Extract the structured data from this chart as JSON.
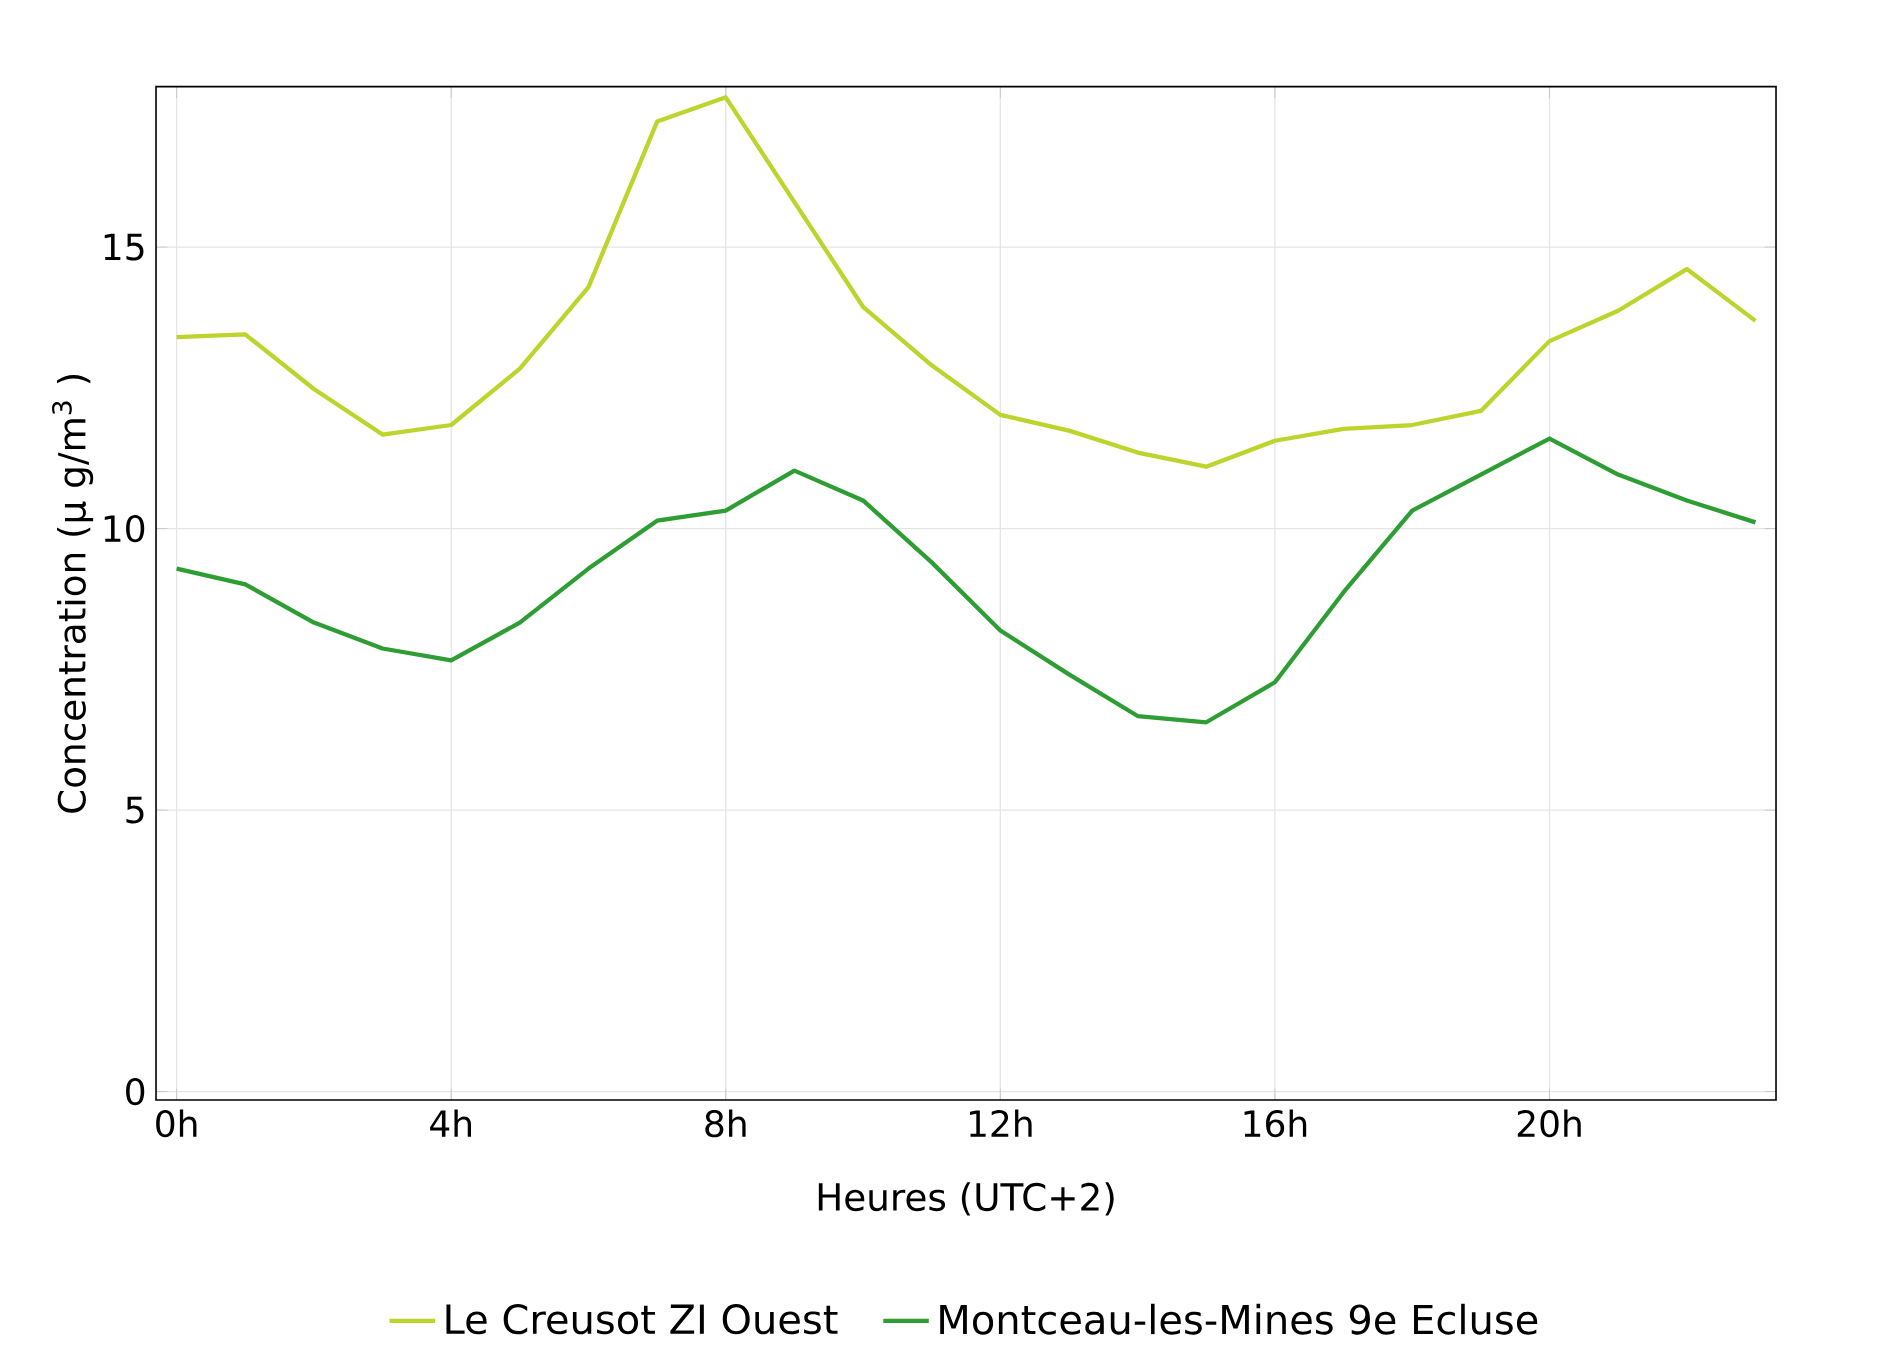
{
  "chart_data": {
    "type": "line",
    "xlabel": "Heures (UTC+2)",
    "ylabel": "Concentration (µ g/m$^{3}$ )",
    "x": [
      0,
      1,
      2,
      3,
      4,
      5,
      6,
      7,
      8,
      9,
      10,
      11,
      12,
      13,
      14,
      15,
      16,
      17,
      18,
      19,
      20,
      21,
      22,
      23
    ],
    "series": [
      {
        "name": "Le Creusot ZI Ouest",
        "color": "#bcd42c",
        "values": [
          13.4,
          13.45,
          12.48,
          11.67,
          11.84,
          12.84,
          14.29,
          17.23,
          17.66,
          15.8,
          13.94,
          12.9,
          12.02,
          11.74,
          11.35,
          11.1,
          11.56,
          11.77,
          11.84,
          12.09,
          13.33,
          13.87,
          14.61,
          13.69
        ]
      },
      {
        "name": "Montceau-les-Mines 9e Ecluse",
        "color": "#2e9e34",
        "values": [
          9.29,
          9.01,
          8.33,
          7.87,
          7.66,
          8.33,
          9.29,
          10.14,
          10.32,
          11.03,
          10.5,
          9.4,
          8.19,
          7.41,
          6.67,
          6.56,
          7.27,
          8.87,
          10.32,
          10.96,
          11.6,
          10.96,
          10.5,
          10.11
        ]
      }
    ],
    "xlim": [
      -0.3,
      23.3
    ],
    "ylim": [
      -0.15,
      17.85
    ],
    "xticks": [
      {
        "value": 0,
        "label": "0h"
      },
      {
        "value": 4,
        "label": "4h"
      },
      {
        "value": 8,
        "label": "8h"
      },
      {
        "value": 12,
        "label": "12h"
      },
      {
        "value": 16,
        "label": "16h"
      },
      {
        "value": 20,
        "label": "20h"
      }
    ],
    "yticks": [
      0,
      5,
      10,
      15
    ],
    "grid": true,
    "legend": "bottom",
    "marker": "none",
    "line_style": "solid"
  }
}
